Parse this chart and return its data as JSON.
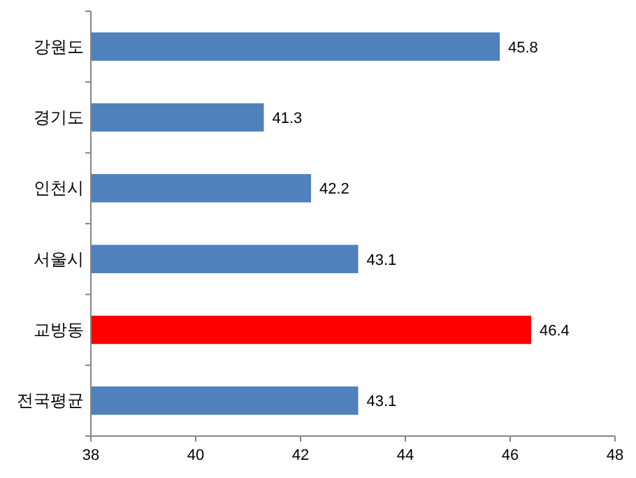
{
  "chart_data": {
    "type": "bar",
    "orientation": "horizontal",
    "categories": [
      "강원도",
      "경기도",
      "인천시",
      "서울시",
      "교방동",
      "전국평균"
    ],
    "values": [
      45.8,
      41.3,
      42.2,
      43.1,
      46.4,
      43.1
    ],
    "colors": [
      "#4f81bd",
      "#4f81bd",
      "#4f81bd",
      "#4f81bd",
      "#ff0000",
      "#4f81bd"
    ],
    "xlim": [
      38,
      48
    ],
    "xticks": [
      38,
      40,
      42,
      44,
      46,
      48
    ],
    "data_labels": true
  }
}
